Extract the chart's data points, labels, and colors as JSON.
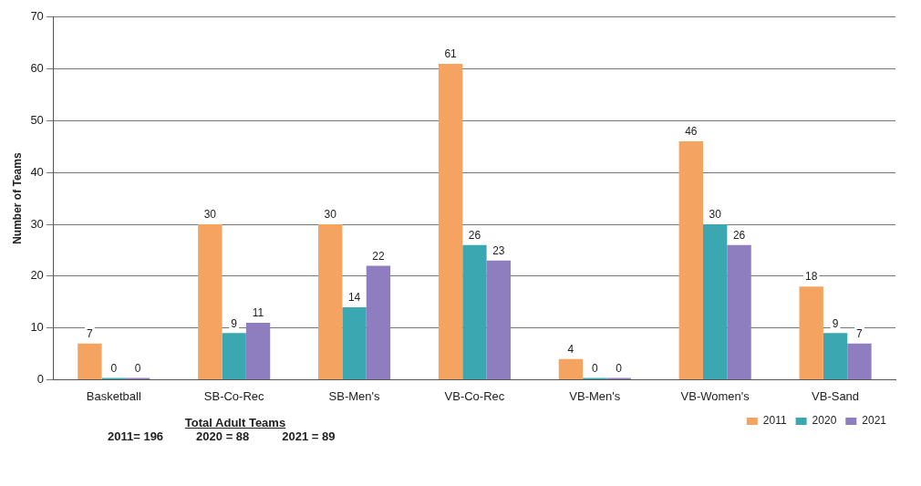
{
  "chart_data": {
    "type": "bar",
    "ylabel": "Number of Teams",
    "categories": [
      "Basketball",
      "SB-Co-Rec",
      "SB-Men's",
      "VB-Co-Rec",
      "VB-Men's",
      "VB-Women's",
      "VB-Sand"
    ],
    "series": [
      {
        "name": "2011",
        "color": "#f4a460",
        "values": [
          7,
          30,
          30,
          61,
          4,
          46,
          18
        ]
      },
      {
        "name": "2020",
        "color": "#3ba7b1",
        "values": [
          0,
          9,
          14,
          26,
          0,
          30,
          9
        ]
      },
      {
        "name": "2021",
        "color": "#8e7dbf",
        "values": [
          0,
          11,
          22,
          23,
          0,
          26,
          7
        ]
      }
    ],
    "ylim": [
      0,
      70
    ],
    "yticks": [
      0,
      10,
      20,
      30,
      40,
      50,
      60,
      70
    ],
    "grid": "y",
    "legend": "bottom right",
    "data_labels": true,
    "annotations": [
      "Total Adult Teams",
      "2011= 196",
      "2020 = 88",
      "2021 = 89"
    ]
  }
}
